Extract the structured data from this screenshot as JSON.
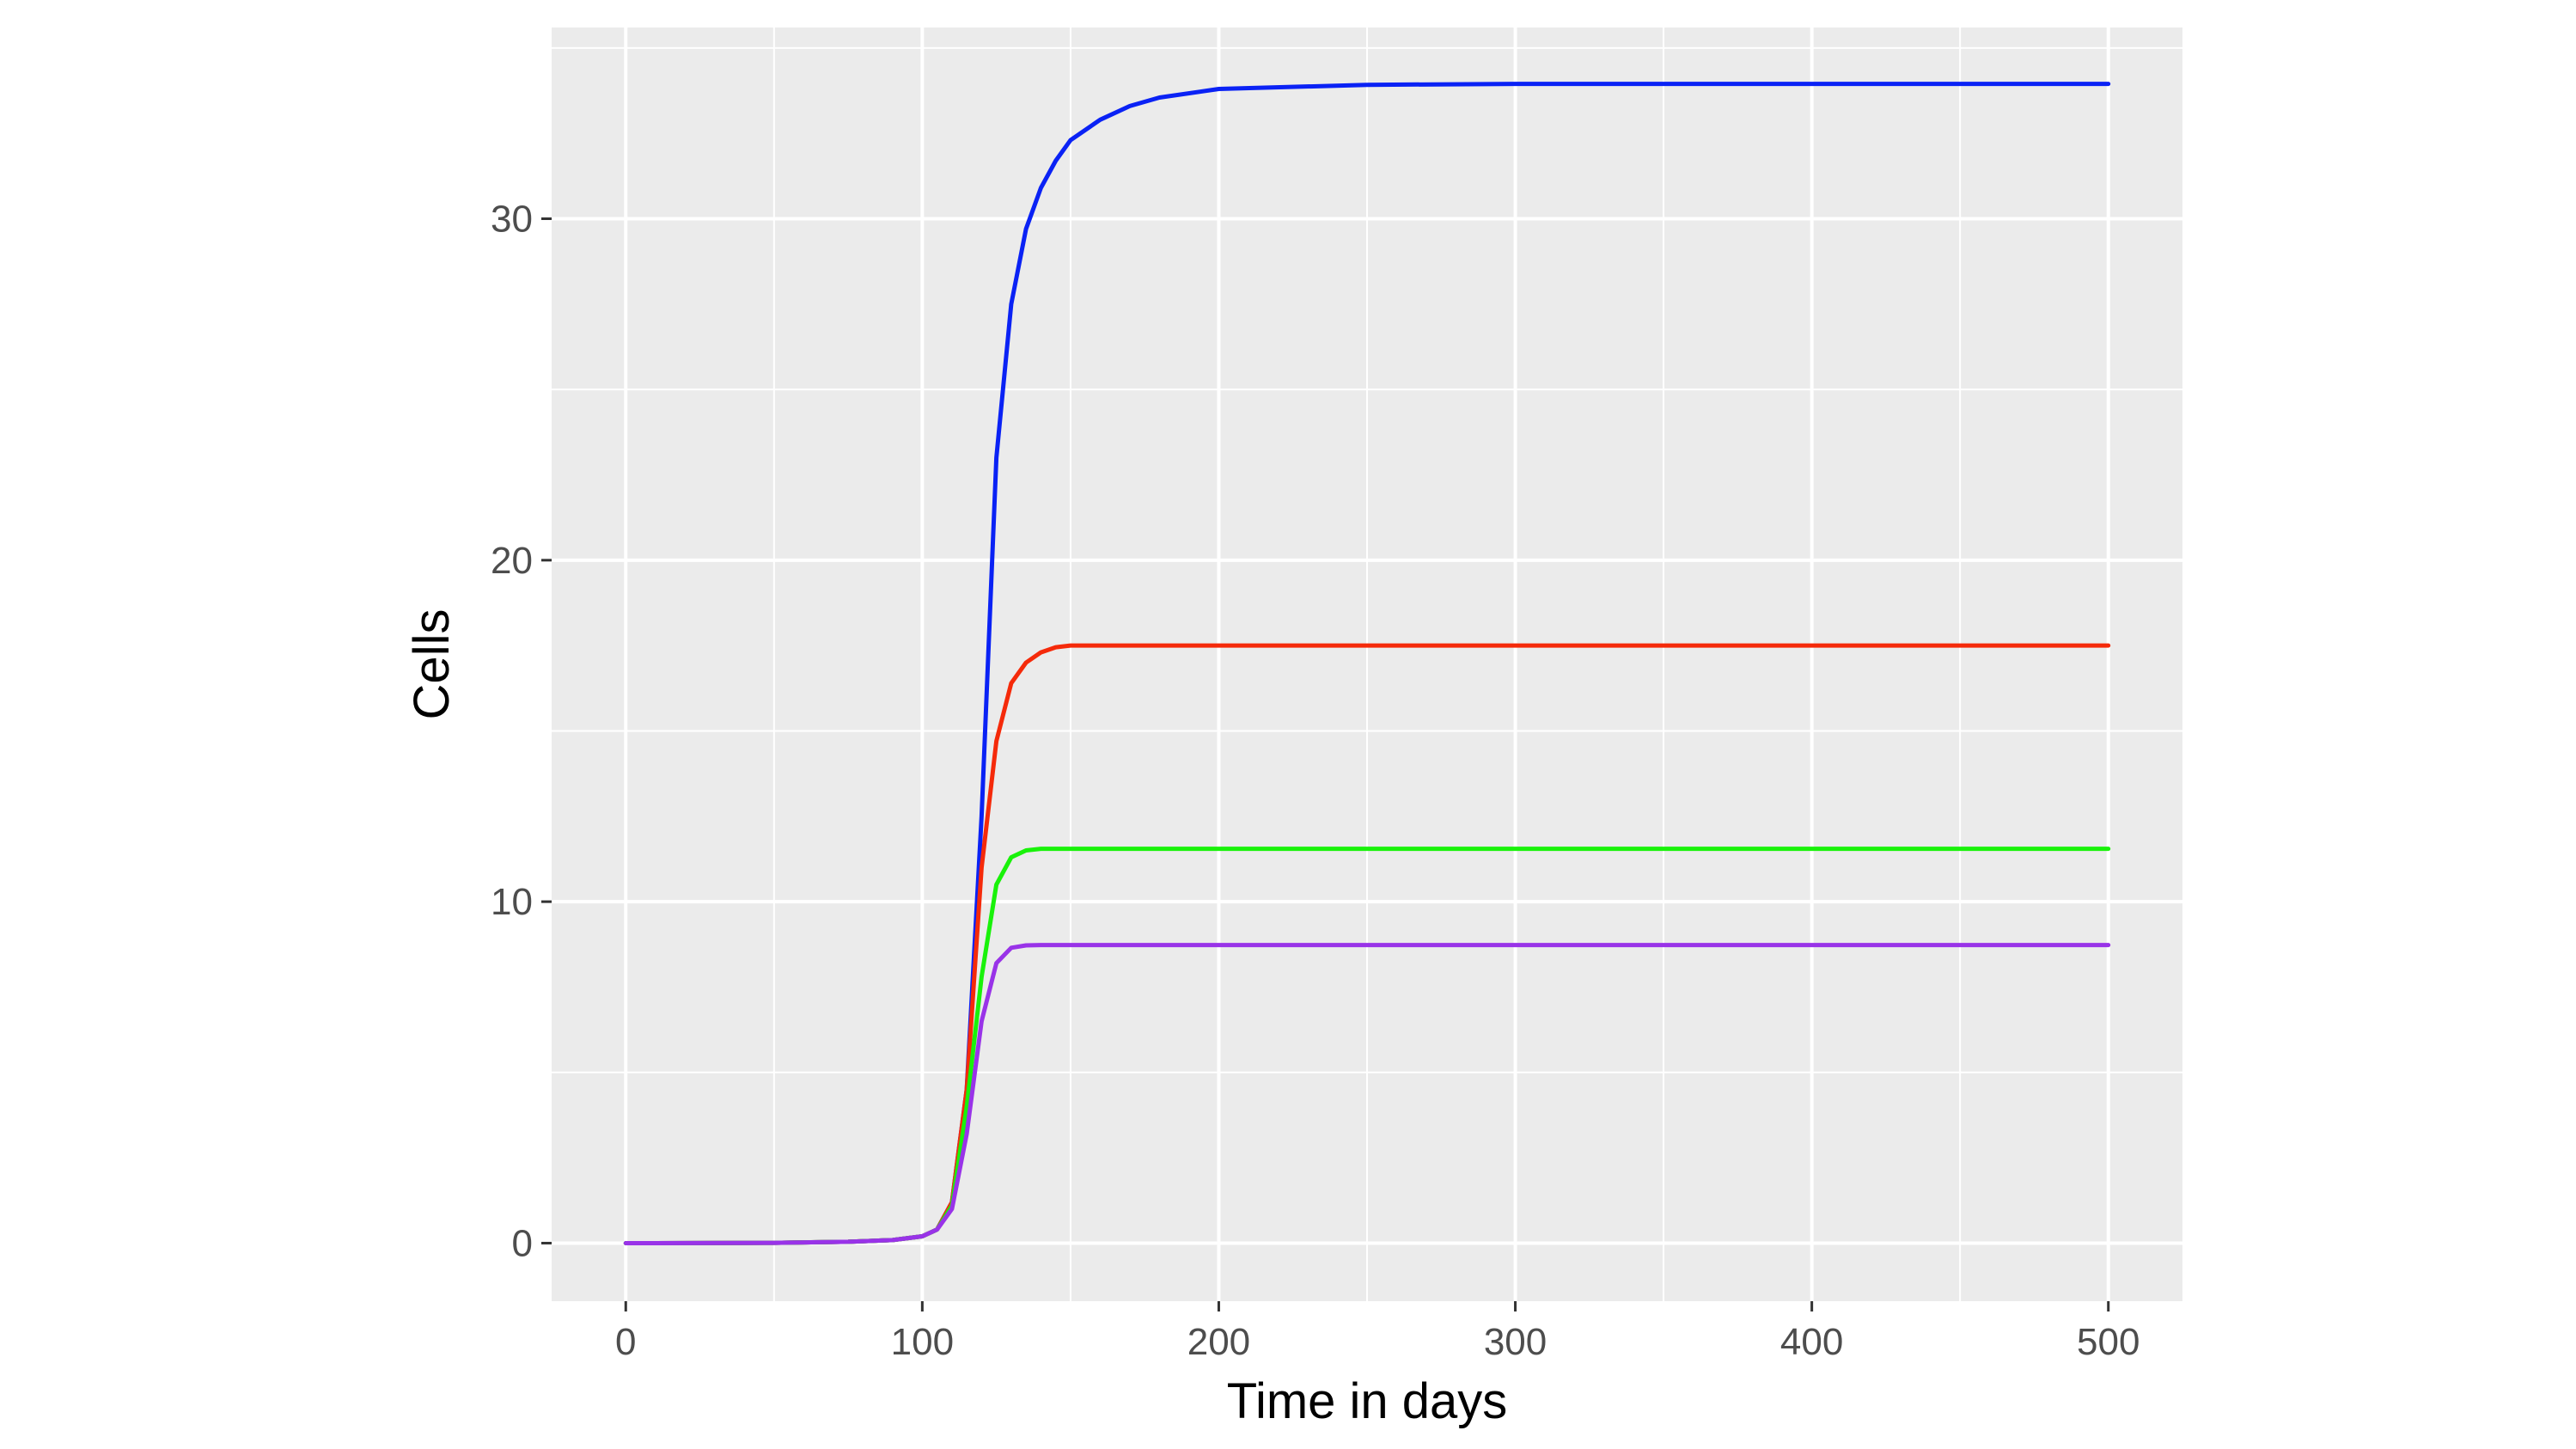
{
  "chart_data": {
    "type": "line",
    "title": "",
    "xlabel": "Time in days",
    "ylabel": "Cells",
    "xlim": [
      -25,
      525
    ],
    "ylim": [
      -1.7,
      35.6
    ],
    "x_ticks": [
      0,
      100,
      200,
      300,
      400,
      500
    ],
    "y_ticks": [
      0,
      10,
      20,
      30
    ],
    "grid": true,
    "legend": "none",
    "x": [
      0,
      25,
      50,
      75,
      90,
      100,
      105,
      110,
      115,
      120,
      125,
      130,
      135,
      140,
      145,
      150,
      160,
      170,
      180,
      200,
      250,
      300,
      400,
      500
    ],
    "series": [
      {
        "color": "#0a22f5",
        "values": [
          0,
          0.002,
          0.01,
          0.04,
          0.09,
          0.2,
          0.4,
          1.2,
          4.5,
          12.5,
          23.0,
          27.5,
          29.7,
          30.9,
          31.7,
          32.3,
          32.9,
          33.3,
          33.55,
          33.8,
          33.92,
          33.95,
          33.95,
          33.95
        ]
      },
      {
        "color": "#f52a0a",
        "values": [
          0,
          0.002,
          0.01,
          0.04,
          0.09,
          0.2,
          0.4,
          1.2,
          4.5,
          11.0,
          14.7,
          16.4,
          17.0,
          17.3,
          17.45,
          17.5,
          17.5,
          17.5,
          17.5,
          17.5,
          17.5,
          17.5,
          17.5,
          17.5
        ]
      },
      {
        "color": "#19f20a",
        "values": [
          0,
          0.002,
          0.01,
          0.04,
          0.09,
          0.2,
          0.4,
          1.1,
          4.0,
          7.8,
          10.5,
          11.3,
          11.5,
          11.55,
          11.55,
          11.55,
          11.55,
          11.55,
          11.55,
          11.55,
          11.55,
          11.55,
          11.55,
          11.55
        ]
      },
      {
        "color": "#9933e8",
        "values": [
          0,
          0.002,
          0.01,
          0.04,
          0.09,
          0.2,
          0.4,
          1.0,
          3.2,
          6.5,
          8.2,
          8.65,
          8.72,
          8.73,
          8.73,
          8.73,
          8.73,
          8.73,
          8.73,
          8.73,
          8.73,
          8.73,
          8.73,
          8.73
        ]
      }
    ]
  }
}
